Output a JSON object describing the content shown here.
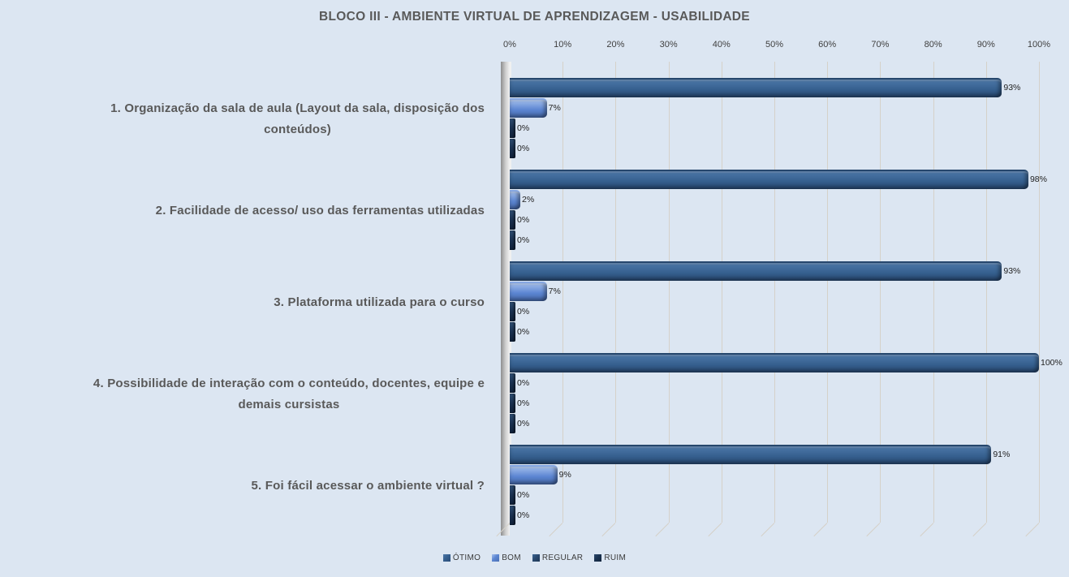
{
  "chart_data": {
    "type": "bar",
    "orientation": "horizontal",
    "style": "3d-clustered",
    "title": "BLOCO III - AMBIENTE VIRTUAL DE APRENDIZAGEM - USABILIDADE",
    "categories": [
      "1. Organização da sala de aula (Layout da sala, disposição dos conteúdos)",
      "2. Facilidade de acesso/ uso das ferramentas utilizadas",
      "3. Plataforma utilizada para o curso",
      "4. Possibilidade de interação com o conteúdo, docentes, equipe e demais cursistas",
      "5. Foi fácil acessar o ambiente virtual ?"
    ],
    "category_lines": [
      [
        "1. Organização da sala de aula (Layout da sala, disposição dos",
        "conteúdos)"
      ],
      [
        "2. Facilidade de acesso/ uso das ferramentas utilizadas"
      ],
      [
        "3. Plataforma utilizada para o curso"
      ],
      [
        "4. Possibilidade de interação com o conteúdo, docentes, equipe e",
        "demais cursistas"
      ],
      [
        "5. Foi fácil acessar o ambiente virtual ?"
      ]
    ],
    "series": [
      {
        "name": "ÓTIMO",
        "values": [
          93,
          98,
          93,
          100,
          91
        ],
        "color": "#36608f",
        "color_light": "#4d78a9",
        "color_dark": "#2a4c77",
        "edge": "#26476d"
      },
      {
        "name": "BOM",
        "values": [
          7,
          2,
          7,
          0,
          9
        ],
        "color": "#5c86d2",
        "color_light": "#a4bfec",
        "color_dark": "#4a6fb4",
        "edge": "#86a7e2"
      },
      {
        "name": "REGULAR",
        "values": [
          0,
          0,
          0,
          0,
          0
        ],
        "color": "#2a4a70",
        "color_light": "#3c6794",
        "color_dark": "#1d3553",
        "edge": "#223f60"
      },
      {
        "name": "RUIM",
        "values": [
          0,
          0,
          0,
          0,
          0
        ],
        "color": "#1b3351",
        "color_light": "#2c4a6e",
        "color_dark": "#10233c",
        "edge": "#162b45"
      }
    ],
    "data_labels": [
      [
        "93%",
        "7%",
        "0%",
        "0%"
      ],
      [
        "98%",
        "2%",
        "0%",
        "0%"
      ],
      [
        "93%",
        "7%",
        "0%",
        "0%"
      ],
      [
        "100%",
        "0%",
        "0%",
        "0%"
      ],
      [
        "91%",
        "9%",
        "0%",
        "0%"
      ]
    ],
    "data_label_suffix": "%",
    "x_ticks": [
      "0%",
      "10%",
      "20%",
      "30%",
      "40%",
      "50%",
      "60%",
      "70%",
      "80%",
      "90%",
      "100%"
    ],
    "xlim": [
      0,
      100
    ],
    "x_tick_step": 10,
    "xlabel": "",
    "ylabel": "",
    "grid": true,
    "legend": [
      "ÓTIMO",
      "BOM",
      "REGULAR",
      "RUIM"
    ],
    "legend_position": "bottom"
  },
  "colors": {
    "background": "#dce6f2",
    "gridline": "#d5d1c9",
    "zero_gridline": "#f0f0f0",
    "title_text": "#595959",
    "category_text": "#595959",
    "axis_text": "#3f3f3f",
    "data_label_text": "#1f1f1f",
    "legend_text": "#3a3a3a",
    "wall_dark": "#8e8e8e",
    "wall_light": "#f2f2f2",
    "zero_bar_top": "#2e4d72",
    "zero_bar_mid": "#1a3150",
    "zero_bar_bottom": "#0f2038"
  }
}
